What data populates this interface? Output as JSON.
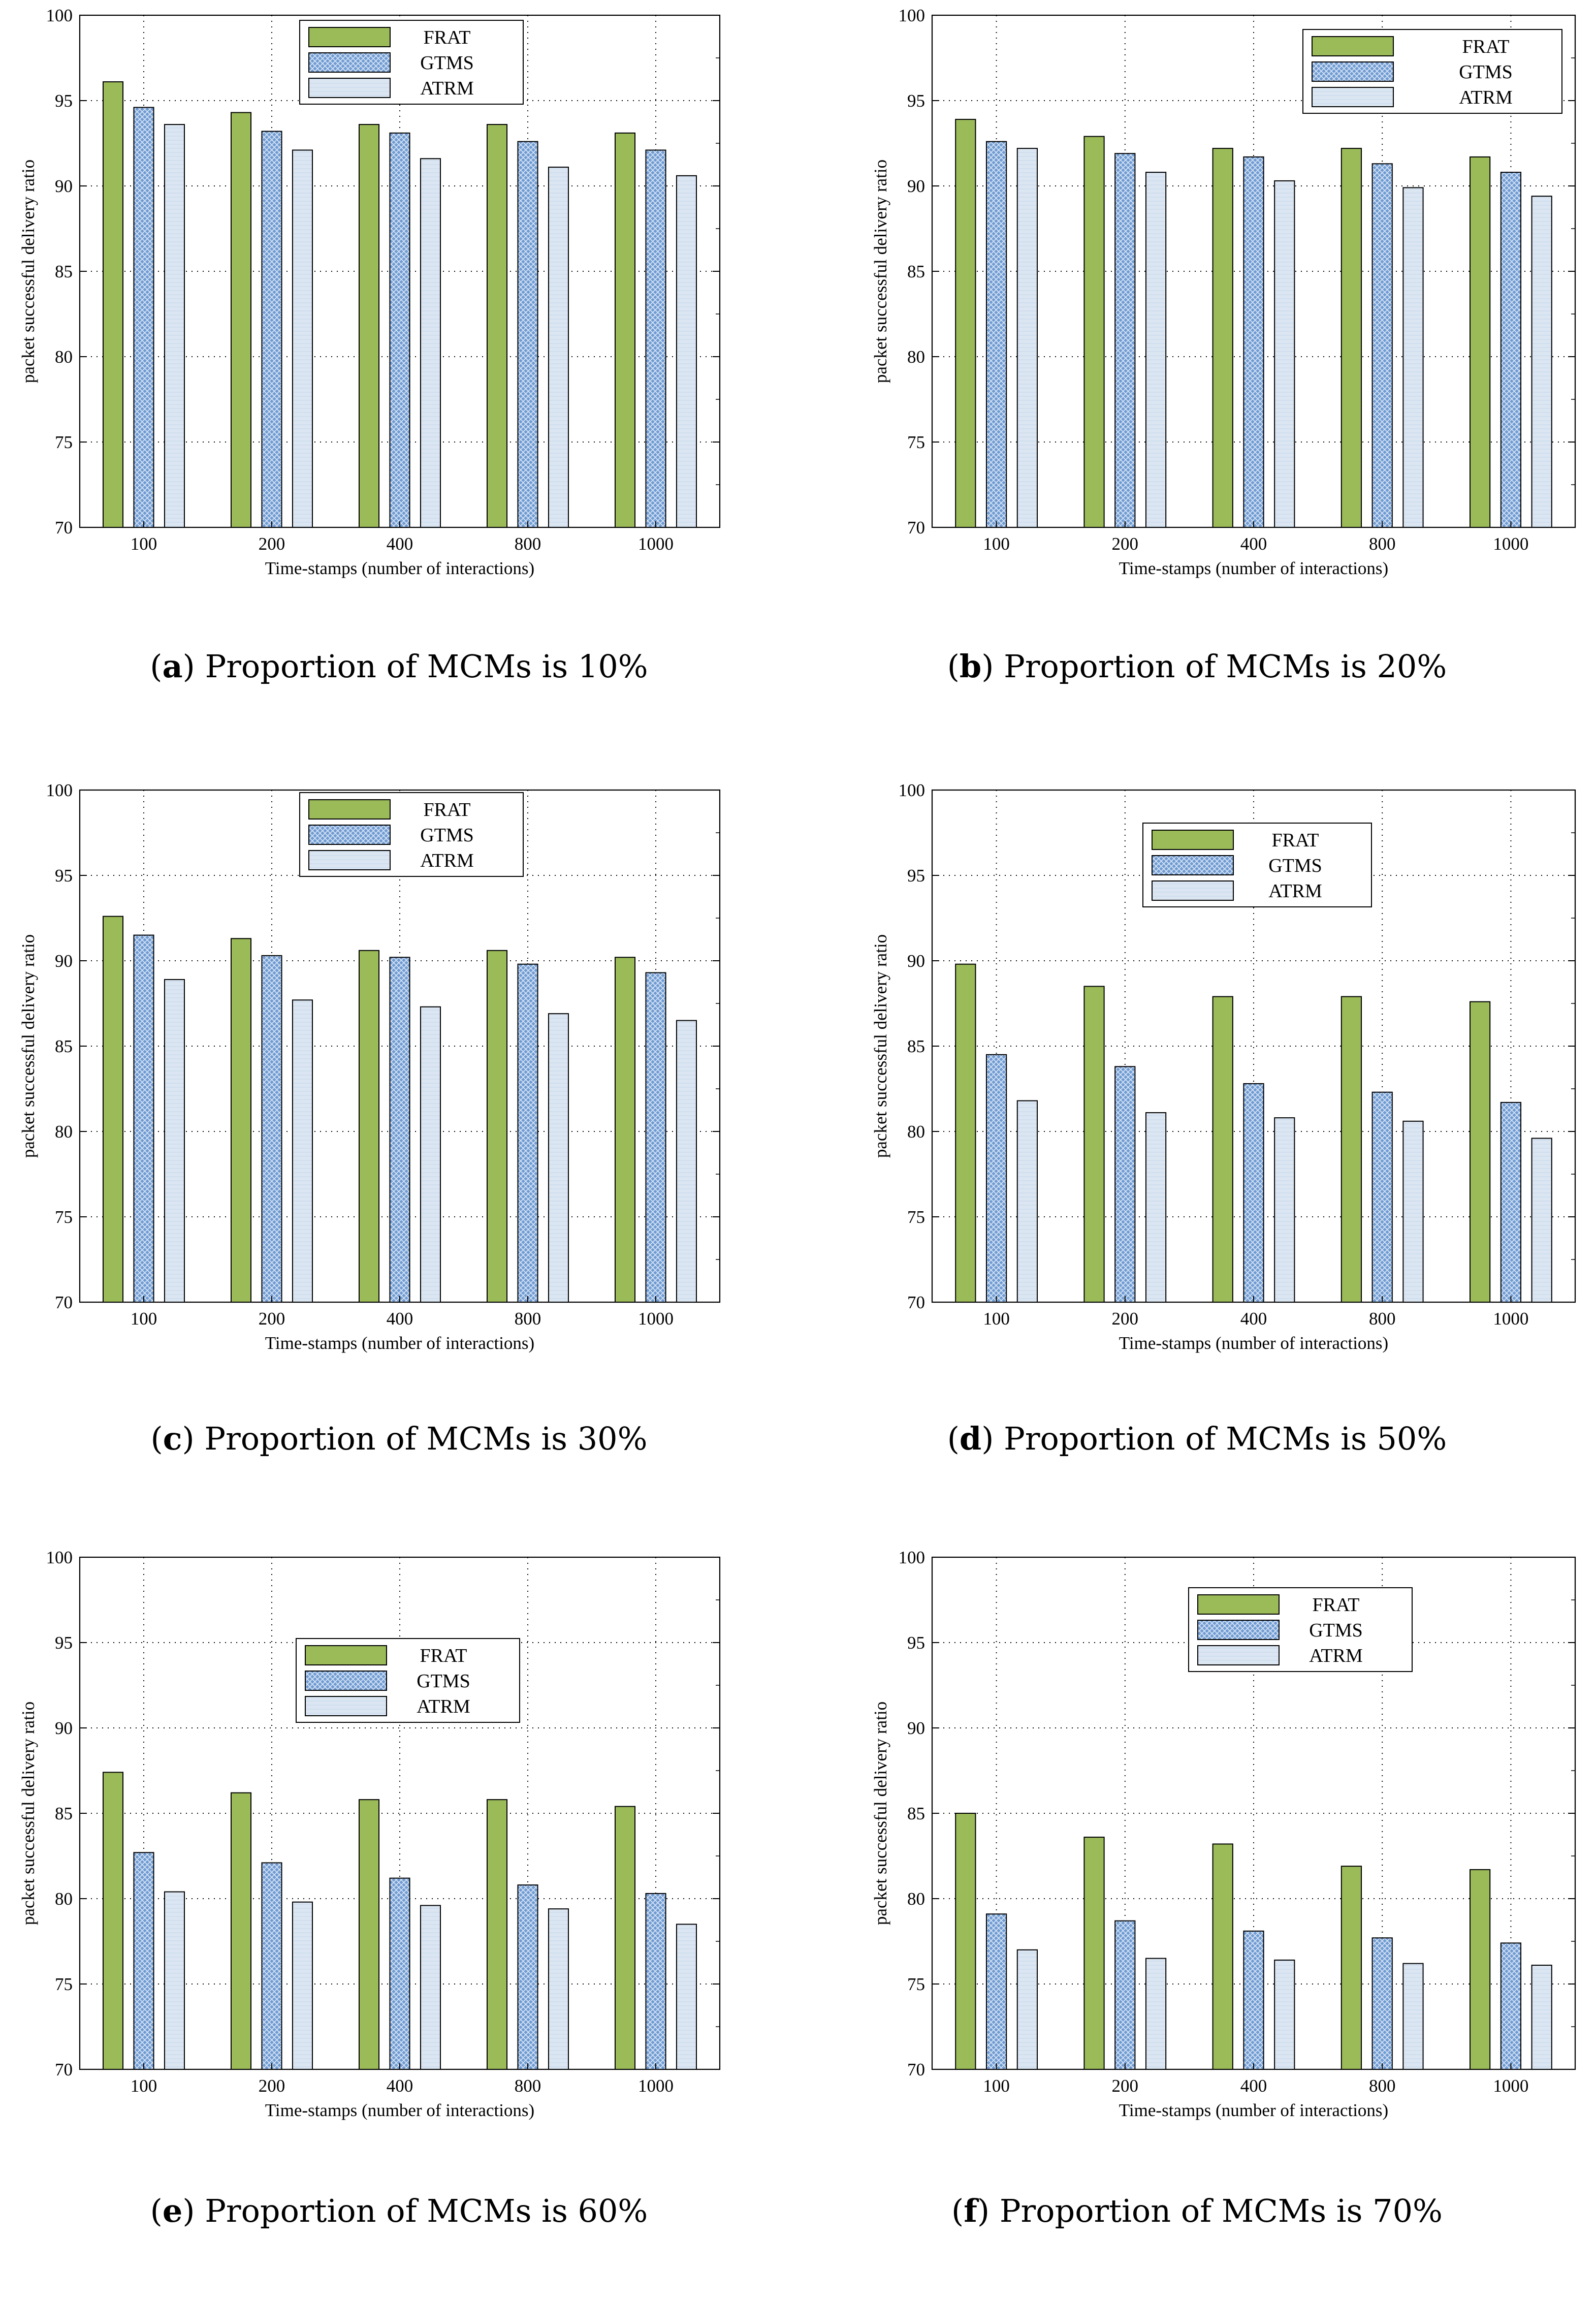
{
  "colors": {
    "FRAT": "#9bbb59",
    "GTMS": "#6f9bd3",
    "ATRM": "#dbe6f2",
    "grid": "#000000"
  },
  "series_names": [
    "FRAT",
    "GTMS",
    "ATRM"
  ],
  "chart_data": [
    {
      "id": "a",
      "type": "bar",
      "caption_letter": "a",
      "caption_text": "Proportion of MCMs is 10%",
      "xlabel": "Time-stamps (number of interactions)",
      "ylabel": "packet successful delivery ratio",
      "categories": [
        "100",
        "200",
        "400",
        "800",
        "1000"
      ],
      "ylim": [
        70,
        100
      ],
      "yticks": [
        70,
        75,
        80,
        85,
        90,
        95,
        100
      ],
      "legend_position": "top-center",
      "series": [
        {
          "name": "FRAT",
          "values": [
            96.1,
            94.3,
            93.6,
            93.6,
            93.1
          ]
        },
        {
          "name": "GTMS",
          "values": [
            94.6,
            93.2,
            93.1,
            92.6,
            92.1
          ]
        },
        {
          "name": "ATRM",
          "values": [
            93.6,
            92.1,
            91.6,
            91.1,
            90.6
          ]
        }
      ]
    },
    {
      "id": "b",
      "type": "bar",
      "caption_letter": "b",
      "caption_text": "Proportion of MCMs is 20%",
      "xlabel": "Time-stamps (number of interactions)",
      "ylabel": "packet successful delivery ratio",
      "categories": [
        "100",
        "200",
        "400",
        "800",
        "1000"
      ],
      "ylim": [
        70,
        100
      ],
      "yticks": [
        70,
        75,
        80,
        85,
        90,
        95,
        100
      ],
      "legend_position": "top-right",
      "series": [
        {
          "name": "FRAT",
          "values": [
            93.9,
            92.9,
            92.2,
            92.2,
            91.7
          ]
        },
        {
          "name": "GTMS",
          "values": [
            92.6,
            91.9,
            91.7,
            91.3,
            90.8
          ]
        },
        {
          "name": "ATRM",
          "values": [
            92.2,
            90.8,
            90.3,
            89.9,
            89.4
          ]
        }
      ]
    },
    {
      "id": "c",
      "type": "bar",
      "caption_letter": "c",
      "caption_text": "Proportion of MCMs is 30%",
      "xlabel": "Time-stamps (number of interactions)",
      "ylabel": "packet successful delivery ratio",
      "categories": [
        "100",
        "200",
        "400",
        "800",
        "1000"
      ],
      "ylim": [
        70,
        100
      ],
      "yticks": [
        70,
        75,
        80,
        85,
        90,
        95,
        100
      ],
      "legend_position": "top-center",
      "series": [
        {
          "name": "FRAT",
          "values": [
            92.6,
            91.3,
            90.6,
            90.6,
            90.2
          ]
        },
        {
          "name": "GTMS",
          "values": [
            91.5,
            90.3,
            90.2,
            89.8,
            89.3
          ]
        },
        {
          "name": "ATRM",
          "values": [
            88.9,
            87.7,
            87.3,
            86.9,
            86.5
          ]
        }
      ]
    },
    {
      "id": "d",
      "type": "bar",
      "caption_letter": "d",
      "caption_text": "Proportion of MCMs is 50%",
      "xlabel": "Time-stamps (number of interactions)",
      "ylabel": "packet successful delivery ratio",
      "categories": [
        "100",
        "200",
        "400",
        "800",
        "1000"
      ],
      "ylim": [
        70,
        100
      ],
      "yticks": [
        70,
        75,
        80,
        85,
        90,
        95,
        100
      ],
      "legend_position": "top-center",
      "series": [
        {
          "name": "FRAT",
          "values": [
            89.8,
            88.5,
            87.9,
            87.9,
            87.6
          ]
        },
        {
          "name": "GTMS",
          "values": [
            84.5,
            83.8,
            82.8,
            82.3,
            81.7
          ]
        },
        {
          "name": "ATRM",
          "values": [
            81.8,
            81.1,
            80.8,
            80.6,
            79.6
          ]
        }
      ]
    },
    {
      "id": "e",
      "type": "bar",
      "caption_letter": "e",
      "caption_text": "Proportion of MCMs is 60%",
      "xlabel": "Time-stamps (number of interactions)",
      "ylabel": "packet successful delivery ratio",
      "categories": [
        "100",
        "200",
        "400",
        "800",
        "1000"
      ],
      "ylim": [
        70,
        100
      ],
      "yticks": [
        70,
        75,
        80,
        85,
        90,
        95,
        100
      ],
      "legend_position": "center",
      "series": [
        {
          "name": "FRAT",
          "values": [
            87.4,
            86.2,
            85.8,
            85.8,
            85.4
          ]
        },
        {
          "name": "GTMS",
          "values": [
            82.7,
            82.1,
            81.2,
            80.8,
            80.3
          ]
        },
        {
          "name": "ATRM",
          "values": [
            80.4,
            79.8,
            79.6,
            79.4,
            78.5
          ]
        }
      ]
    },
    {
      "id": "f",
      "type": "bar",
      "caption_letter": "f",
      "caption_text": "Proportion of MCMs is 70%",
      "xlabel": "Time-stamps (number of interactions)",
      "ylabel": "packet successful delivery ratio",
      "categories": [
        "100",
        "200",
        "400",
        "800",
        "1000"
      ],
      "ylim": [
        70,
        100
      ],
      "yticks": [
        70,
        75,
        80,
        85,
        90,
        95,
        100
      ],
      "legend_position": "top-center",
      "series": [
        {
          "name": "FRAT",
          "values": [
            85.0,
            83.6,
            83.2,
            81.9,
            81.7
          ]
        },
        {
          "name": "GTMS",
          "values": [
            79.1,
            78.7,
            78.1,
            77.7,
            77.4
          ]
        },
        {
          "name": "ATRM",
          "values": [
            77.0,
            76.5,
            76.4,
            76.2,
            76.1
          ]
        }
      ]
    }
  ]
}
